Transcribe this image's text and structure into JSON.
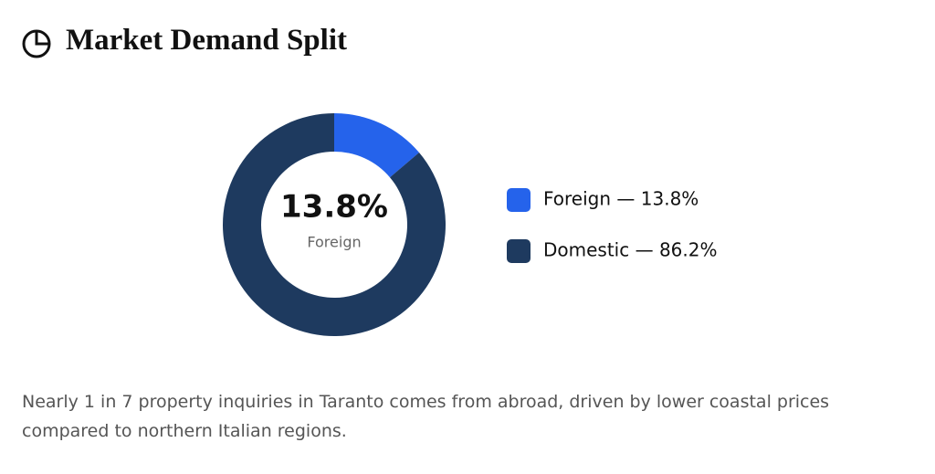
{
  "chart_data": {
    "type": "donut",
    "title": "Market Demand Split",
    "categories": [
      "Foreign",
      "Domestic"
    ],
    "values": [
      13.8,
      86.2
    ],
    "colors": [
      "#2563eb",
      "#1e3a5f"
    ],
    "center_label": "13.8%",
    "legend_labels": [
      "Foreign — 13.8%",
      "Domestic — 86.2%"
    ]
  },
  "caption": "Nearly 1 in 7 property inquiries in Taranto comes from abroad, driven by lower coastal prices compared to northern Italian regions."
}
